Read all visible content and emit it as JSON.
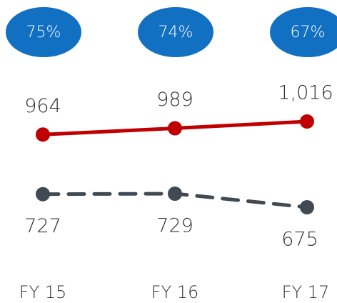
{
  "chart_data": {
    "type": "line",
    "categories": [
      "FY 15",
      "FY 16",
      "FY 17"
    ],
    "percentages": [
      75,
      74,
      67
    ],
    "percentage_labels": [
      "75%",
      "74%",
      "67%"
    ],
    "percentage_color": "#1170c2",
    "series": [
      {
        "color": "#c00000",
        "values": [
          964,
          989,
          1016
        ],
        "value_labels": [
          "964",
          "989",
          "1,016"
        ],
        "dashed": false,
        "label_side": "above"
      },
      {
        "color": "#414a52",
        "values": [
          727,
          729,
          675
        ],
        "dashed": true,
        "label_side": "below"
      }
    ]
  }
}
